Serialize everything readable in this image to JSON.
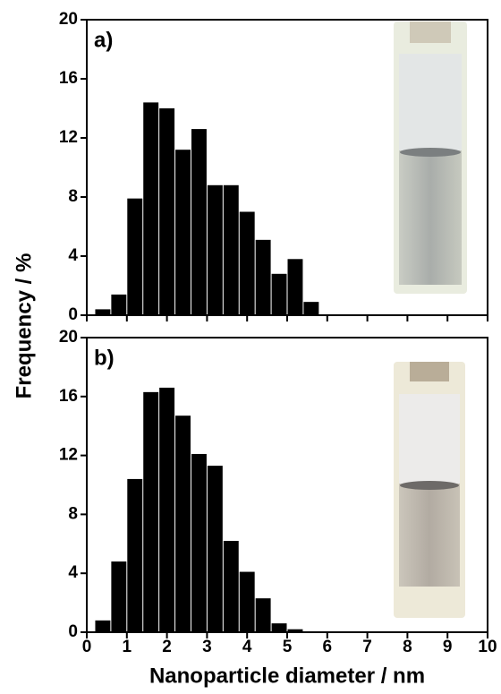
{
  "chart_data": [
    {
      "type": "histogram",
      "label": "a)",
      "ylabel": "Frequency / %",
      "bins": [
        0.2,
        0.6,
        1.0,
        1.4,
        1.8,
        2.2,
        2.6,
        3.0,
        3.4,
        3.8,
        4.2,
        4.6,
        5.0,
        5.4,
        5.8
      ],
      "values": [
        0.4,
        1.4,
        7.9,
        14.4,
        14.0,
        11.2,
        12.6,
        8.8,
        8.8,
        7.0,
        5.1,
        2.8,
        3.8,
        0.9
      ],
      "color": "#000000",
      "xlim": [
        0,
        10
      ],
      "xticks": [
        0,
        1,
        2,
        3,
        4,
        5,
        6,
        7,
        8,
        9,
        10
      ],
      "ylim": [
        0,
        20
      ],
      "yticks": [
        0,
        4,
        8,
        12,
        16,
        20
      ]
    },
    {
      "type": "histogram",
      "label": "b)",
      "xlabel": "Nanoparticle diameter / nm",
      "bins": [
        0.2,
        0.6,
        1.0,
        1.4,
        1.8,
        2.2,
        2.6,
        3.0,
        3.4,
        3.8,
        4.2,
        4.6,
        5.0,
        5.4
      ],
      "values": [
        0.8,
        4.8,
        10.4,
        16.3,
        16.6,
        14.7,
        12.1,
        11.3,
        6.2,
        4.1,
        2.3,
        0.6,
        0.2
      ],
      "color": "#000000",
      "xlim": [
        0,
        10
      ],
      "xticks": [
        0,
        1,
        2,
        3,
        4,
        5,
        6,
        7,
        8,
        9,
        10
      ],
      "ylim": [
        0,
        20
      ],
      "yticks": [
        0,
        4,
        8,
        12,
        16,
        20
      ]
    }
  ]
}
